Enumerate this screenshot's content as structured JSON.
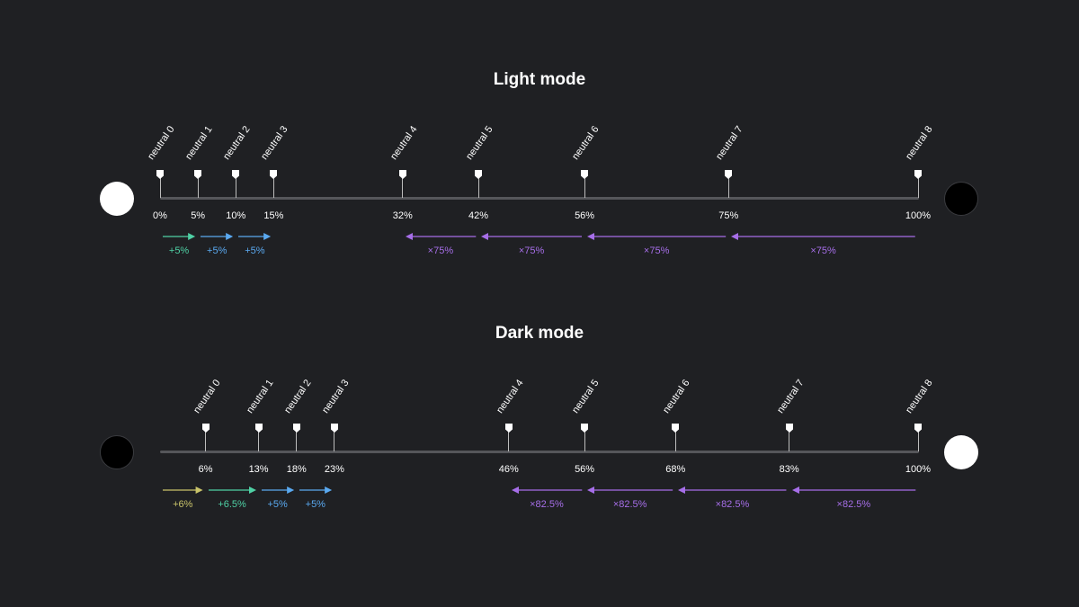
{
  "light": {
    "title": "Light mode",
    "start_circle_color": "#ffffff",
    "end_circle_color": "#000000",
    "markers": [
      {
        "name": "neutral 0",
        "pct": "0%"
      },
      {
        "name": "neutral 1",
        "pct": "5%"
      },
      {
        "name": "neutral 2",
        "pct": "10%"
      },
      {
        "name": "neutral 3",
        "pct": "15%"
      },
      {
        "name": "neutral 4",
        "pct": "32%"
      },
      {
        "name": "neutral 5",
        "pct": "42%"
      },
      {
        "name": "neutral 6",
        "pct": "56%"
      },
      {
        "name": "neutral 7",
        "pct": "75%"
      },
      {
        "name": "neutral 8",
        "pct": "100%"
      }
    ],
    "steps": [
      {
        "label": "+5%",
        "from": 0,
        "to": 1,
        "color": "#4fd1a5"
      },
      {
        "label": "+5%",
        "from": 1,
        "to": 2,
        "color": "#5aa9f0"
      },
      {
        "label": "+5%",
        "from": 2,
        "to": 3,
        "color": "#5aa9f0"
      },
      {
        "label": "×75%",
        "from": 5,
        "to": 4,
        "color": "#a66ee8"
      },
      {
        "label": "×75%",
        "from": 6,
        "to": 5,
        "color": "#a66ee8"
      },
      {
        "label": "×75%",
        "from": 7,
        "to": 6,
        "color": "#a66ee8"
      },
      {
        "label": "×75%",
        "from": 8,
        "to": 7,
        "color": "#a66ee8"
      }
    ]
  },
  "dark": {
    "title": "Dark mode",
    "start_circle_color": "#000000",
    "end_circle_color": "#ffffff",
    "markers": [
      {
        "name": "neutral 0",
        "pct": "6%"
      },
      {
        "name": "neutral 1",
        "pct": "13%"
      },
      {
        "name": "neutral 2",
        "pct": "18%"
      },
      {
        "name": "neutral 3",
        "pct": "23%"
      },
      {
        "name": "neutral 4",
        "pct": "46%"
      },
      {
        "name": "neutral 5",
        "pct": "56%"
      },
      {
        "name": "neutral 6",
        "pct": "68%"
      },
      {
        "name": "neutral 7",
        "pct": "83%"
      },
      {
        "name": "neutral 8",
        "pct": "100%"
      }
    ],
    "steps": [
      {
        "label": "+6%",
        "from": -1,
        "to": 0,
        "color": "#c9c46a"
      },
      {
        "label": "+6.5%",
        "from": 0,
        "to": 1,
        "color": "#4fd1a5"
      },
      {
        "label": "+5%",
        "from": 1,
        "to": 2,
        "color": "#5aa9f0"
      },
      {
        "label": "+5%",
        "from": 2,
        "to": 3,
        "color": "#5aa9f0"
      },
      {
        "label": "×82.5%",
        "from": 5,
        "to": 4,
        "color": "#a66ee8"
      },
      {
        "label": "×82.5%",
        "from": 6,
        "to": 5,
        "color": "#a66ee8"
      },
      {
        "label": "×82.5%",
        "from": 7,
        "to": 6,
        "color": "#a66ee8"
      },
      {
        "label": "×82.5%",
        "from": 8,
        "to": 7,
        "color": "#a66ee8"
      }
    ]
  }
}
